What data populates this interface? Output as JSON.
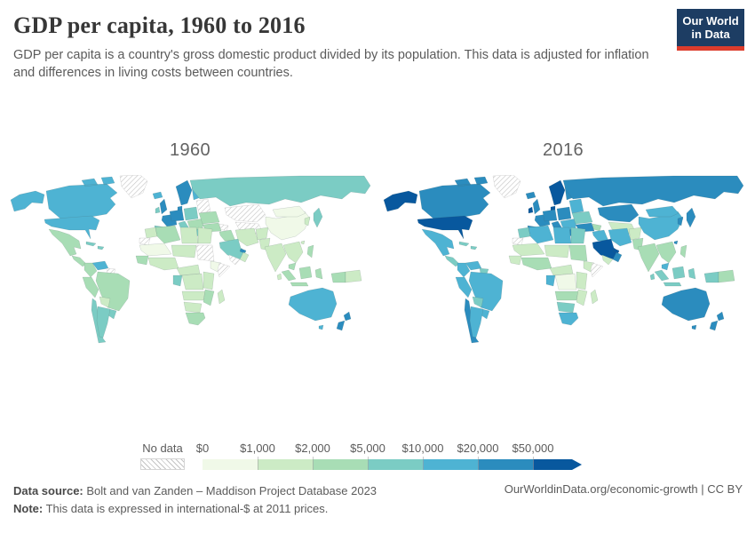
{
  "header": {
    "title": "GDP per capita, 1960 to 2016",
    "subtitle": "GDP per capita is a country's gross domestic product divided by its population. This data is adjusted for inflation\nand differences in living costs between countries.",
    "logo_line1": "Our World",
    "logo_line2": "in Data",
    "logo_bg": "#1d3d63",
    "logo_accent": "#dc3c2c"
  },
  "maps": [
    {
      "year": "1960"
    },
    {
      "year": "2016"
    }
  ],
  "legend": {
    "no_data_label": "No data",
    "tick_labels": [
      "$0",
      "$1,000",
      "$2,000",
      "$5,000",
      "$10,000",
      "$20,000",
      "$50,000"
    ]
  },
  "footer": {
    "source_label": "Data source:",
    "source_text": "Bolt and van Zanden – Maddison Project Database 2023",
    "note_label": "Note:",
    "note_text": "This data is expressed in international-$ at 2011 prices.",
    "link_text": "OurWorldinData.org/economic-growth | CC BY"
  },
  "chart_data": {
    "type": "choropleth",
    "title": "GDP per capita, 1960 to 2016",
    "unit": "international-$ at 2011 prices",
    "years": [
      1960,
      2016
    ],
    "bin_thresholds": [
      0,
      1000,
      2000,
      5000,
      10000,
      20000,
      50000
    ],
    "bin_colors": [
      "#f0f9e8",
      "#ccebc5",
      "#a8ddb5",
      "#7bccc4",
      "#4eb3d3",
      "#2b8cbe",
      "#08589e"
    ],
    "no_data_style": "hatched",
    "regions": [
      {
        "name": "alaska",
        "bins": [
          4,
          6
        ]
      },
      {
        "name": "canada",
        "bins": [
          4,
          5
        ]
      },
      {
        "name": "greenland",
        "bins": [
          "nodata",
          "nodata"
        ]
      },
      {
        "name": "usa",
        "bins": [
          4,
          6
        ]
      },
      {
        "name": "mexico",
        "bins": [
          2,
          4
        ]
      },
      {
        "name": "central-america",
        "bins": [
          2,
          3
        ]
      },
      {
        "name": "cuba",
        "bins": [
          3,
          3
        ]
      },
      {
        "name": "venezuela",
        "bins": [
          4,
          4
        ]
      },
      {
        "name": "colombia",
        "bins": [
          2,
          4
        ]
      },
      {
        "name": "guyanas",
        "bins": [
          "nodata",
          3
        ]
      },
      {
        "name": "peru",
        "bins": [
          2,
          4
        ]
      },
      {
        "name": "brazil",
        "bins": [
          2,
          4
        ]
      },
      {
        "name": "bolivia",
        "bins": [
          1,
          3
        ]
      },
      {
        "name": "paraguay-uruguay",
        "bins": [
          3,
          4
        ]
      },
      {
        "name": "chile",
        "bins": [
          3,
          5
        ]
      },
      {
        "name": "argentina",
        "bins": [
          3,
          4
        ]
      },
      {
        "name": "iceland",
        "bins": [
          4,
          5
        ]
      },
      {
        "name": "uk",
        "bins": [
          5,
          5
        ]
      },
      {
        "name": "ireland",
        "bins": [
          3,
          6
        ]
      },
      {
        "name": "scandinavia",
        "bins": [
          5,
          6
        ]
      },
      {
        "name": "finland",
        "bins": [
          4,
          5
        ]
      },
      {
        "name": "france",
        "bins": [
          5,
          5
        ]
      },
      {
        "name": "germany-central",
        "bins": [
          5,
          5
        ]
      },
      {
        "name": "central-europe",
        "bins": [
          3,
          5
        ]
      },
      {
        "name": "iberia",
        "bins": [
          3,
          5
        ]
      },
      {
        "name": "italy",
        "bins": [
          3,
          5
        ]
      },
      {
        "name": "balkans",
        "bins": [
          2,
          4
        ]
      },
      {
        "name": "greece",
        "bins": [
          3,
          5
        ]
      },
      {
        "name": "baltics-belarus",
        "bins": [
          "nodata",
          4
        ]
      },
      {
        "name": "ukraine",
        "bins": [
          2,
          3
        ]
      },
      {
        "name": "russia",
        "bins": [
          3,
          5
        ]
      },
      {
        "name": "kazakhstan",
        "bins": [
          "nodata",
          5
        ]
      },
      {
        "name": "central-asia",
        "bins": [
          "nodata",
          1
        ]
      },
      {
        "name": "caucasus",
        "bins": [
          "nodata",
          2
        ]
      },
      {
        "name": "turkey",
        "bins": [
          2,
          5
        ]
      },
      {
        "name": "levant-iraq",
        "bins": [
          2,
          4
        ]
      },
      {
        "name": "iran",
        "bins": [
          1,
          4
        ]
      },
      {
        "name": "saudi-arabia",
        "bins": [
          3,
          6
        ]
      },
      {
        "name": "qatar-uae",
        "bins": [
          5,
          6
        ]
      },
      {
        "name": "yemen",
        "bins": [
          "nodata",
          1
        ]
      },
      {
        "name": "oman",
        "bins": [
          1,
          5
        ]
      },
      {
        "name": "afghanistan",
        "bins": [
          1,
          1
        ]
      },
      {
        "name": "pakistan",
        "bins": [
          1,
          2
        ]
      },
      {
        "name": "india",
        "bins": [
          1,
          2
        ]
      },
      {
        "name": "sri-lanka",
        "bins": [
          1,
          3
        ]
      },
      {
        "name": "china",
        "bins": [
          0,
          4
        ]
      },
      {
        "name": "mongolia",
        "bins": [
          0,
          4
        ]
      },
      {
        "name": "korea",
        "bins": [
          1,
          5
        ]
      },
      {
        "name": "japan",
        "bins": [
          3,
          5
        ]
      },
      {
        "name": "taiwan",
        "bins": [
          1,
          5
        ]
      },
      {
        "name": "se-asia",
        "bins": [
          1,
          2
        ]
      },
      {
        "name": "malaysia",
        "bins": [
          2,
          4
        ]
      },
      {
        "name": "philippines",
        "bins": [
          2,
          2
        ]
      },
      {
        "name": "indonesia",
        "bins": [
          2,
          3
        ]
      },
      {
        "name": "borneo",
        "bins": [
          2,
          3
        ]
      },
      {
        "name": "west-new-guinea",
        "bins": [
          2,
          3
        ]
      },
      {
        "name": "png",
        "bins": [
          1,
          2
        ]
      },
      {
        "name": "australia",
        "bins": [
          4,
          5
        ]
      },
      {
        "name": "new-zealand",
        "bins": [
          5,
          5
        ]
      },
      {
        "name": "morocco",
        "bins": [
          1,
          3
        ]
      },
      {
        "name": "western-sahara",
        "bins": [
          "nodata",
          "nodata"
        ]
      },
      {
        "name": "algeria",
        "bins": [
          2,
          4
        ]
      },
      {
        "name": "libya",
        "bins": [
          1,
          4
        ]
      },
      {
        "name": "egypt",
        "bins": [
          1,
          3
        ]
      },
      {
        "name": "mauritania-mali",
        "bins": [
          0,
          1
        ]
      },
      {
        "name": "niger-chad",
        "bins": [
          1,
          1
        ]
      },
      {
        "name": "sudan",
        "bins": [
          "nodata",
          2
        ]
      },
      {
        "name": "senegal-guinea",
        "bins": [
          2,
          1
        ]
      },
      {
        "name": "ghana-nigeria",
        "bins": [
          1,
          2
        ]
      },
      {
        "name": "ethiopia",
        "bins": [
          0,
          1
        ]
      },
      {
        "name": "somalia",
        "bins": [
          "nodata",
          "nodata"
        ]
      },
      {
        "name": "cameroon-car",
        "bins": [
          1,
          1
        ]
      },
      {
        "name": "gabon-congo",
        "bins": [
          3,
          4
        ]
      },
      {
        "name": "drc",
        "bins": [
          1,
          0
        ]
      },
      {
        "name": "east-africa",
        "bins": [
          1,
          1
        ]
      },
      {
        "name": "angola-zambia",
        "bins": [
          1,
          2
        ]
      },
      {
        "name": "zimbabwe-mozambique",
        "bins": [
          2,
          1
        ]
      },
      {
        "name": "namibia-botswana",
        "bins": [
          1,
          3
        ]
      },
      {
        "name": "south-africa",
        "bins": [
          2,
          4
        ]
      },
      {
        "name": "madagascar",
        "bins": [
          1,
          1
        ]
      }
    ]
  }
}
